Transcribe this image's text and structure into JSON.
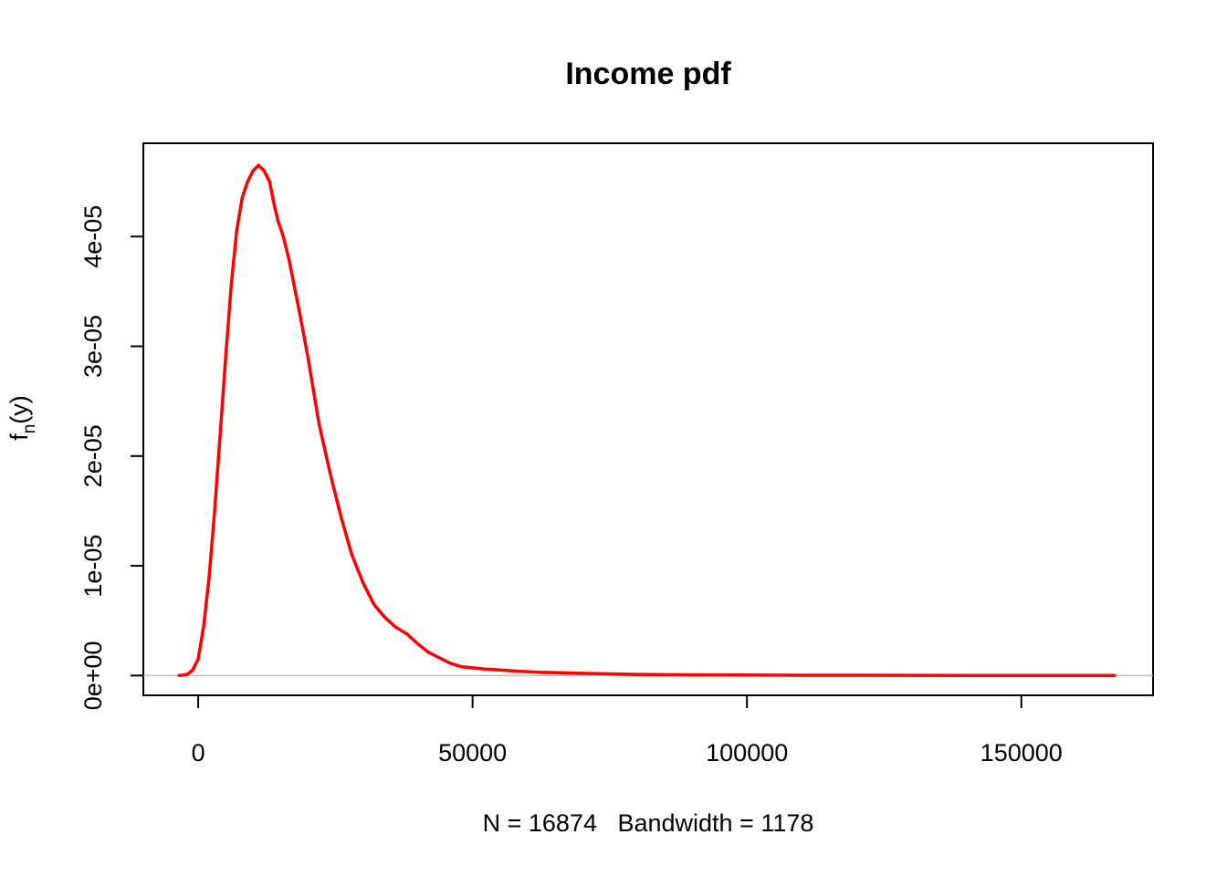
{
  "chart_data": {
    "type": "line",
    "title": "Income pdf",
    "xlabel": "N = 16874   Bandwidth = 1178",
    "ylabel": "f",
    "ylabel_subscript": "n",
    "ylabel_suffix": "(y)",
    "xlim": [
      -10000,
      174000
    ],
    "ylim": [
      -1.8e-06,
      4.85e-05
    ],
    "x_ticks": [
      {
        "value": 0,
        "label": "0"
      },
      {
        "value": 50000,
        "label": "50000"
      },
      {
        "value": 100000,
        "label": "100000"
      },
      {
        "value": 150000,
        "label": "150000"
      }
    ],
    "y_ticks": [
      {
        "value": 0,
        "label": "0e+00"
      },
      {
        "value": 1e-05,
        "label": "1e-05"
      },
      {
        "value": 2e-05,
        "label": "2e-05"
      },
      {
        "value": 3e-05,
        "label": "3e-05"
      },
      {
        "value": 4e-05,
        "label": "4e-05"
      }
    ],
    "baseline": 0,
    "series": [
      {
        "color": "#ff0000",
        "x": [
          -3500,
          -2000,
          -1000,
          0,
          1000,
          2000,
          3000,
          4000,
          5000,
          6000,
          7000,
          8000,
          9000,
          10000,
          11000,
          12000,
          13000,
          13800,
          14500,
          15500,
          16500,
          17500,
          18500,
          20000,
          22000,
          24000,
          26000,
          28000,
          30000,
          32000,
          34000,
          36000,
          38000,
          40000,
          42000,
          44000,
          46000,
          48000,
          50000,
          52000,
          55000,
          58000,
          62000,
          66000,
          70000,
          75000,
          80000,
          90000,
          100000,
          110000,
          120000,
          130000,
          140000,
          150000,
          160000,
          167000
        ],
        "y": [
          0,
          1e-07,
          5e-07,
          1.5e-06,
          4.5e-06,
          9e-06,
          1.5e-05,
          2.2e-05,
          2.9e-05,
          3.55e-05,
          4.05e-05,
          4.35e-05,
          4.5e-05,
          4.6e-05,
          4.65e-05,
          4.6e-05,
          4.5e-05,
          4.3e-05,
          4.15e-05,
          4e-05,
          3.8e-05,
          3.55e-05,
          3.3e-05,
          2.9e-05,
          2.3e-05,
          1.85e-05,
          1.45e-05,
          1.1e-05,
          8.5e-06,
          6.5e-06,
          5.3e-06,
          4.4e-06,
          3.8e-06,
          2.9e-06,
          2.1e-06,
          1.6e-06,
          1.1e-06,
          8e-07,
          7e-07,
          6e-07,
          5e-07,
          4e-07,
          3e-07,
          2.5e-07,
          2e-07,
          1.5e-07,
          1e-07,
          6e-08,
          5e-08,
          3e-08,
          3e-08,
          2e-08,
          1e-08,
          1e-08,
          5e-09,
          0
        ]
      }
    ]
  }
}
